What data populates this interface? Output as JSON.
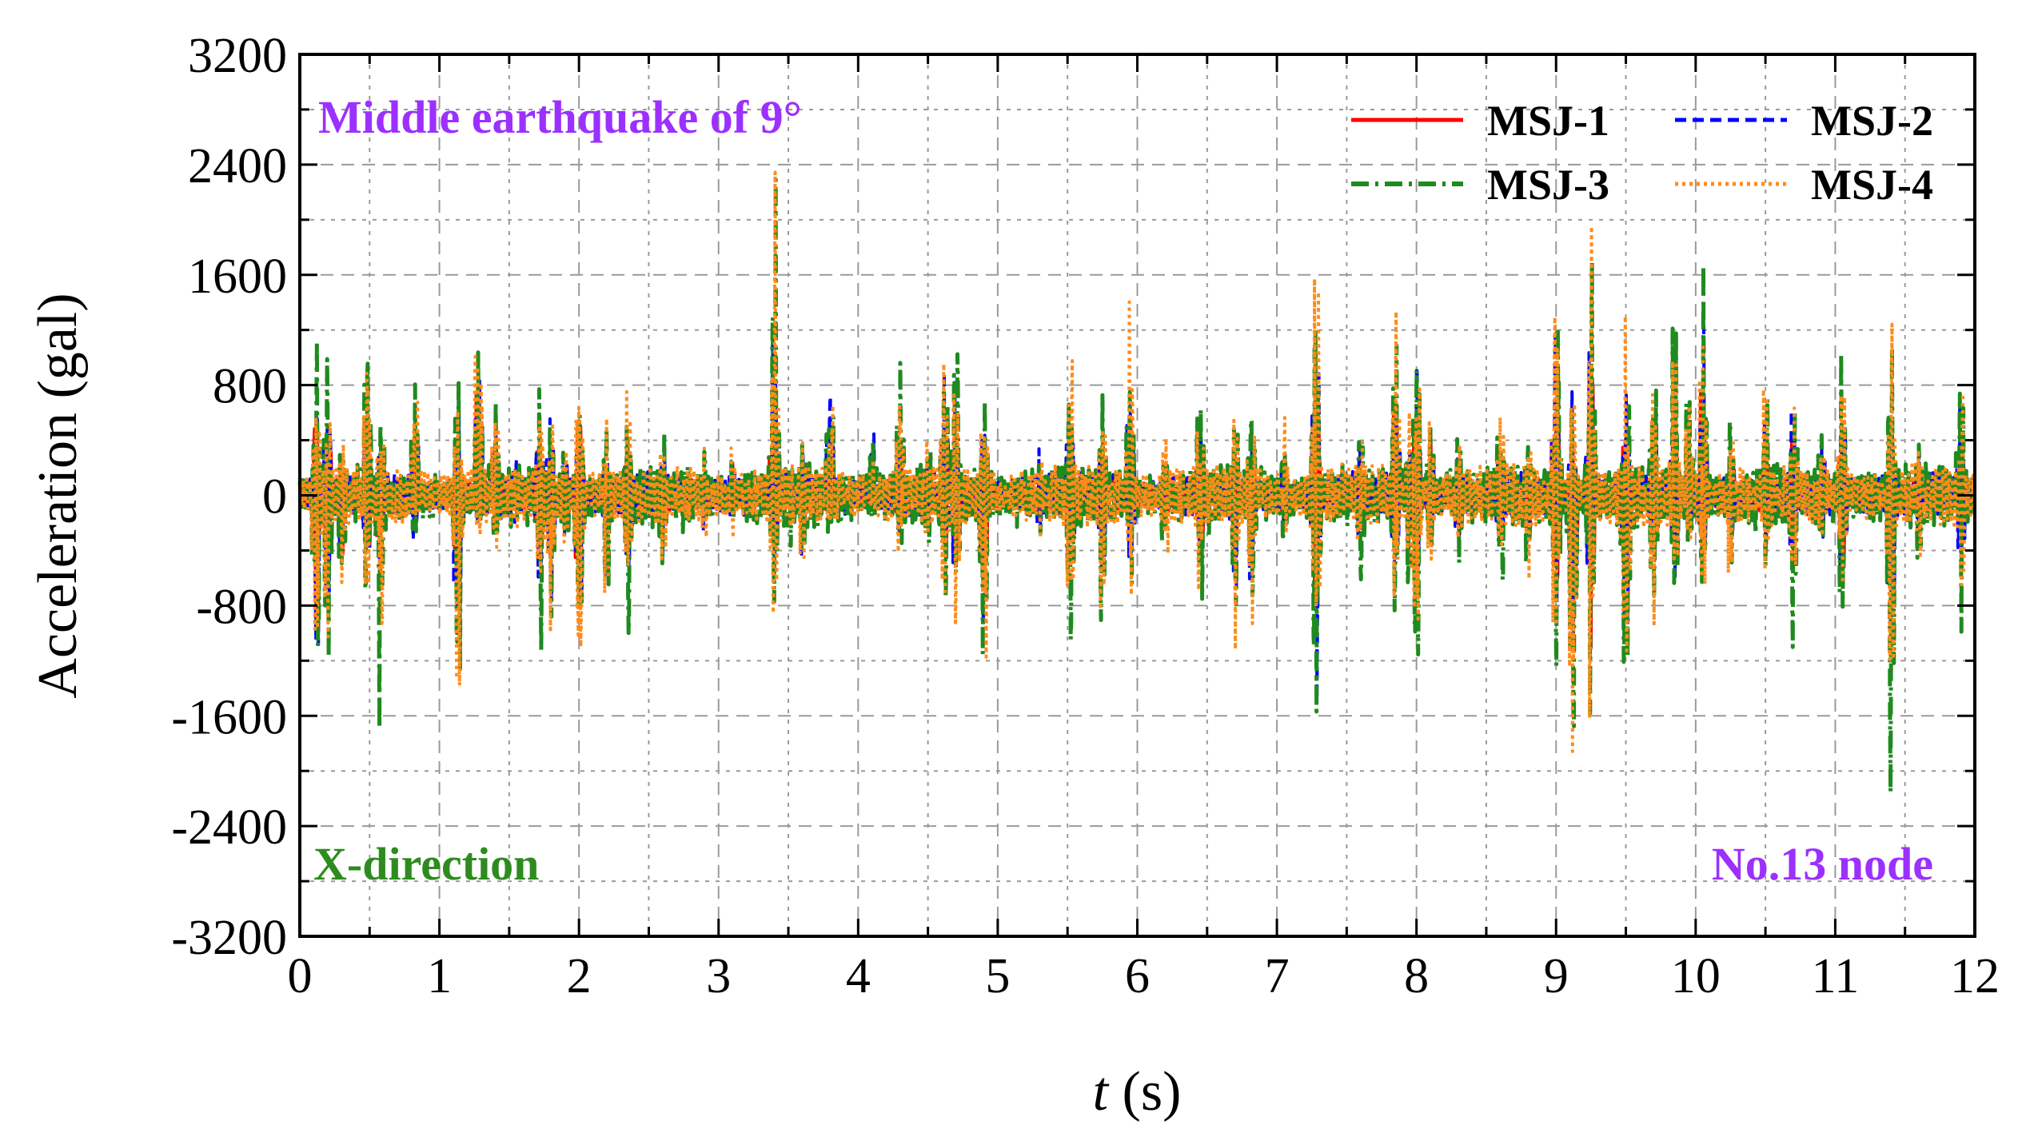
{
  "chart_data": {
    "type": "line",
    "xlabel_italic": "t",
    "xlabel_unit": " (s)",
    "ylabel": "Acceleration (gal)",
    "xlim": [
      0,
      12
    ],
    "ylim": [
      -3200,
      3200
    ],
    "x_ticks": [
      "0",
      "1",
      "2",
      "3",
      "4",
      "5",
      "6",
      "7",
      "8",
      "9",
      "10",
      "11",
      "12"
    ],
    "y_ticks": [
      "3200",
      "2400",
      "1600",
      "800",
      "0",
      "-800",
      "-1600",
      "-2400",
      "-3200"
    ],
    "grid": true,
    "legend_position": "top-right",
    "annotations": {
      "top_left": "Middle earthquake of 9°",
      "bottom_left": "X-direction",
      "bottom_right": "No.13 node"
    },
    "colors": {
      "top_left": "#9b30ff",
      "bottom_left": "#2e8b1f",
      "bottom_right": "#9b30ff"
    },
    "series": [
      {
        "name": "MSJ-1",
        "color": "#ff0000",
        "style": "solid"
      },
      {
        "name": "MSJ-2",
        "color": "#0000ff",
        "style": "dash"
      },
      {
        "name": "MSJ-3",
        "color": "#1f8a1f",
        "style": "dashdot"
      },
      {
        "name": "MSJ-4",
        "color": "#ff8c1a",
        "style": "dot"
      }
    ],
    "peaks": [
      [
        0.12,
        1000,
        -1600
      ],
      [
        0.2,
        950,
        -1250
      ],
      [
        0.3,
        500,
        -700
      ],
      [
        0.48,
        1100,
        -900
      ],
      [
        0.58,
        550,
        -1200
      ],
      [
        0.82,
        1000,
        -400
      ],
      [
        1.13,
        850,
        -1700
      ],
      [
        1.28,
        1600,
        -300
      ],
      [
        1.4,
        700,
        -350
      ],
      [
        1.55,
        350,
        -300
      ],
      [
        1.72,
        800,
        -1150
      ],
      [
        1.8,
        800,
        -900
      ],
      [
        1.9,
        400,
        -500
      ],
      [
        2.0,
        950,
        -1550
      ],
      [
        2.2,
        550,
        -800
      ],
      [
        2.35,
        650,
        -950
      ],
      [
        2.6,
        450,
        -550
      ],
      [
        2.9,
        300,
        -350
      ],
      [
        3.1,
        400,
        -250
      ],
      [
        3.4,
        1950,
        -950
      ],
      [
        3.6,
        450,
        -600
      ],
      [
        3.8,
        1000,
        -300
      ],
      [
        4.1,
        550,
        -200
      ],
      [
        4.3,
        1000,
        -400
      ],
      [
        4.5,
        450,
        -400
      ],
      [
        4.62,
        1000,
        -800
      ],
      [
        4.7,
        1050,
        -1050
      ],
      [
        4.9,
        700,
        -1450
      ],
      [
        5.3,
        350,
        -400
      ],
      [
        5.52,
        1000,
        -1100
      ],
      [
        5.75,
        600,
        -850
      ],
      [
        5.95,
        1150,
        -700
      ],
      [
        6.2,
        450,
        -500
      ],
      [
        6.45,
        800,
        -800
      ],
      [
        6.7,
        600,
        -900
      ],
      [
        6.82,
        700,
        -900
      ],
      [
        7.05,
        450,
        -350
      ],
      [
        7.28,
        1750,
        -1800
      ],
      [
        7.6,
        600,
        -650
      ],
      [
        7.85,
        1250,
        -1000
      ],
      [
        7.95,
        500,
        -700
      ],
      [
        8.0,
        1250,
        -1200
      ],
      [
        8.1,
        550,
        -450
      ],
      [
        8.3,
        450,
        -550
      ],
      [
        8.6,
        600,
        -700
      ],
      [
        8.8,
        450,
        -600
      ],
      [
        9.0,
        1800,
        -1550
      ],
      [
        9.12,
        850,
        -2200
      ],
      [
        9.25,
        1800,
        -1700
      ],
      [
        9.5,
        1200,
        -1750
      ],
      [
        9.7,
        1100,
        -850
      ],
      [
        9.85,
        1250,
        -800
      ],
      [
        9.95,
        700,
        -400
      ],
      [
        10.05,
        1500,
        -800
      ],
      [
        10.25,
        550,
        -600
      ],
      [
        10.5,
        750,
        -500
      ],
      [
        10.7,
        1000,
        -1000
      ],
      [
        10.9,
        550,
        -400
      ],
      [
        11.05,
        950,
        -1050
      ],
      [
        11.4,
        1100,
        -1800
      ],
      [
        11.6,
        400,
        -500
      ],
      [
        11.9,
        950,
        -800
      ]
    ]
  }
}
